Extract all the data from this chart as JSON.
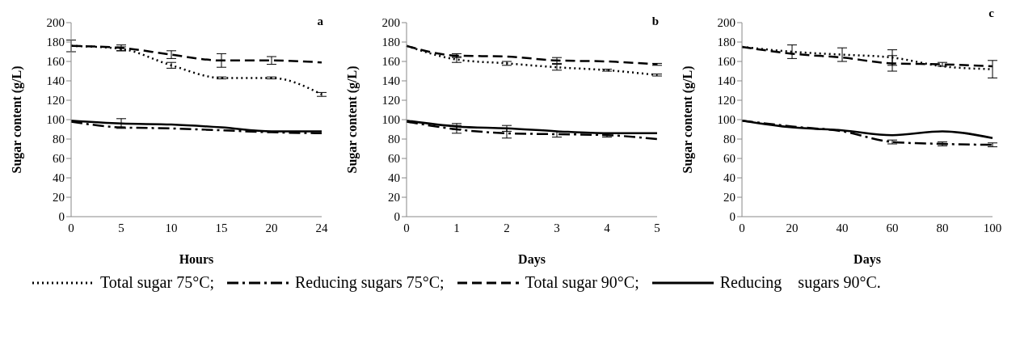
{
  "chart_data": [
    {
      "type": "line",
      "title": "a",
      "xlabel": "Hours",
      "ylabel": "Sugar content (g/L)",
      "categories": [
        "0",
        "5",
        "10",
        "15",
        "20",
        "24"
      ],
      "ylim": [
        0,
        200
      ],
      "yticks": [
        0,
        20,
        40,
        60,
        80,
        100,
        120,
        140,
        160,
        180,
        200
      ],
      "legend": "bottom",
      "series": [
        {
          "name": "Total sugar 75°C;",
          "color": "#000000",
          "line_style": "dotted",
          "values": [
            176,
            173,
            156,
            143,
            143,
            126
          ],
          "errors": [
            null,
            2,
            3,
            1,
            1,
            2
          ]
        },
        {
          "name": "Reducing sugars 75°C;",
          "color": "#000000",
          "line_style": "dashdot",
          "values": [
            98,
            92,
            91,
            89,
            87,
            86
          ]
        },
        {
          "name": "Total sugar 90°C;",
          "color": "#000000",
          "line_style": "dashed",
          "values": [
            176,
            174,
            167,
            161,
            161,
            159
          ],
          "errors": [
            6,
            3,
            4,
            7,
            4,
            null
          ]
        },
        {
          "name": "Reducing    sugars 90°C.",
          "color": "#000000",
          "line_style": "solid",
          "values": [
            99,
            96,
            95,
            92,
            88,
            88
          ],
          "errors": [
            null,
            5,
            null,
            null,
            null,
            null
          ]
        }
      ]
    },
    {
      "type": "line",
      "title": "b",
      "xlabel": "Days",
      "ylabel": "Sugar content (g/L)",
      "categories": [
        "0",
        "1",
        "2",
        "3",
        "4",
        "5"
      ],
      "ylim": [
        0,
        200
      ],
      "yticks": [
        0,
        20,
        40,
        60,
        80,
        100,
        120,
        140,
        160,
        180,
        200
      ],
      "series": [
        {
          "color": "#000000",
          "line_style": "dotted",
          "values": [
            176,
            162,
            158,
            154,
            151,
            146
          ],
          "errors": [
            null,
            3,
            2,
            3,
            1,
            1
          ]
        },
        {
          "color": "#000000",
          "line_style": "dashdot",
          "values": [
            98,
            90,
            86,
            85,
            84,
            80
          ],
          "errors": [
            null,
            4,
            5,
            3,
            2,
            null
          ]
        },
        {
          "color": "#000000",
          "line_style": "dashed",
          "values": [
            176,
            166,
            165,
            161,
            160,
            157
          ],
          "errors": [
            null,
            2,
            null,
            3,
            null,
            1
          ]
        },
        {
          "color": "#000000",
          "line_style": "solid",
          "values": [
            99,
            93,
            91,
            88,
            86,
            86
          ],
          "errors": [
            null,
            3,
            3,
            null,
            null,
            null
          ]
        }
      ]
    },
    {
      "type": "line",
      "title": "c",
      "xlabel": "Days",
      "ylabel": "Sugar content (g/L)",
      "categories": [
        "0",
        "20",
        "40",
        "60",
        "80",
        "100"
      ],
      "ylim": [
        0,
        200
      ],
      "yticks": [
        0,
        20,
        40,
        60,
        80,
        100,
        120,
        140,
        160,
        180,
        200
      ],
      "series": [
        {
          "color": "#000000",
          "line_style": "dotted",
          "values": [
            175,
            170,
            167,
            164,
            155,
            152
          ],
          "errors": [
            null,
            7,
            7,
            8,
            null,
            9
          ]
        },
        {
          "color": "#000000",
          "line_style": "dashdot",
          "values": [
            99,
            93,
            88,
            77,
            75,
            74
          ],
          "errors": [
            null,
            null,
            null,
            2,
            2,
            2
          ]
        },
        {
          "color": "#000000",
          "line_style": "dashed",
          "values": [
            175,
            168,
            164,
            158,
            157,
            155
          ],
          "errors": [
            null,
            null,
            null,
            8,
            2,
            null
          ]
        },
        {
          "color": "#000000",
          "line_style": "solid",
          "values": [
            99,
            92,
            89,
            84,
            88,
            81
          ]
        }
      ]
    }
  ]
}
